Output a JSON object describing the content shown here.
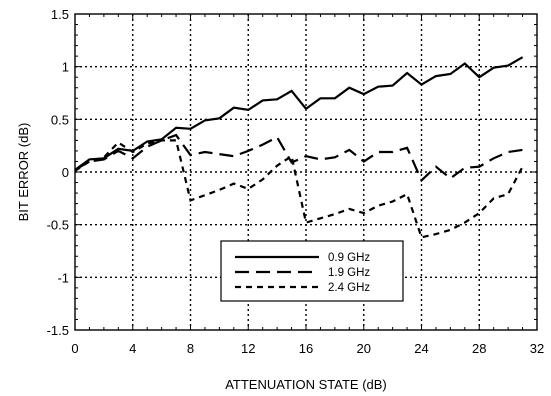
{
  "chart_data": {
    "type": "line",
    "title": "",
    "xlabel": "ATTENUATION STATE (dB)",
    "ylabel": "BIT ERROR (dB)",
    "xlim": [
      0,
      32
    ],
    "ylim": [
      -1.5,
      1.5
    ],
    "xticks": [
      0,
      4,
      8,
      12,
      16,
      20,
      24,
      28,
      32
    ],
    "yticks": [
      -1.5,
      -1,
      -0.5,
      0,
      0.5,
      1,
      1.5
    ],
    "xtick_labels": [
      "0",
      "4",
      "8",
      "12",
      "16",
      "20",
      "24",
      "28",
      "32"
    ],
    "ytick_labels": [
      "-1.5",
      "-1",
      "-0.5",
      "0",
      "0.5",
      "1",
      "1.5"
    ],
    "grid": true,
    "legend_position": "bottom-center",
    "x": [
      0,
      1,
      2,
      3,
      4,
      5,
      6,
      7,
      8,
      9,
      10,
      11,
      12,
      13,
      14,
      15,
      16,
      17,
      18,
      19,
      20,
      21,
      22,
      23,
      24,
      25,
      26,
      27,
      28,
      29,
      30,
      31
    ],
    "series": [
      {
        "name": "0.9 GHz",
        "style": "solid",
        "values": [
          0.02,
          0.12,
          0.13,
          0.22,
          0.2,
          0.29,
          0.31,
          0.42,
          0.41,
          0.49,
          0.51,
          0.61,
          0.59,
          0.68,
          0.69,
          0.77,
          0.6,
          0.7,
          0.7,
          0.8,
          0.74,
          0.81,
          0.82,
          0.94,
          0.83,
          0.91,
          0.93,
          1.03,
          0.9,
          0.99,
          1.01,
          1.09
        ]
      },
      {
        "name": "1.9 GHz",
        "style": "long-dash",
        "values": [
          0.02,
          0.1,
          0.12,
          0.2,
          0.13,
          0.24,
          0.3,
          0.35,
          0.16,
          0.19,
          0.17,
          0.15,
          0.2,
          0.26,
          0.33,
          0.09,
          0.15,
          0.12,
          0.14,
          0.21,
          0.1,
          0.19,
          0.19,
          0.23,
          -0.08,
          0.05,
          -0.06,
          0.04,
          0.05,
          0.13,
          0.19,
          0.21
        ]
      },
      {
        "name": "2.4 GHz",
        "style": "short-dash",
        "values": [
          0.01,
          0.1,
          0.14,
          0.28,
          0.19,
          0.27,
          0.3,
          0.3,
          -0.27,
          -0.22,
          -0.17,
          -0.11,
          -0.16,
          -0.07,
          0.06,
          0.15,
          -0.48,
          -0.44,
          -0.4,
          -0.35,
          -0.39,
          -0.32,
          -0.28,
          -0.21,
          -0.62,
          -0.59,
          -0.55,
          -0.48,
          -0.39,
          -0.25,
          -0.21,
          0.05
        ]
      }
    ]
  }
}
